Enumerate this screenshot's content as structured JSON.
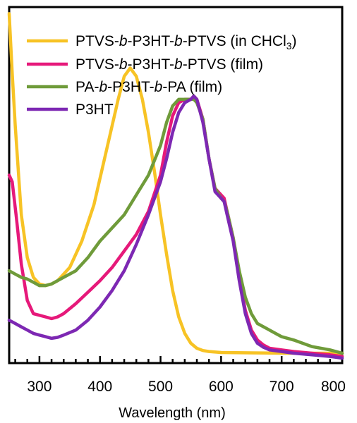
{
  "chart_data": {
    "type": "line",
    "title": "",
    "xlabel": "Wavelength (nm)",
    "ylabel": "",
    "xlim": [
      250,
      800
    ],
    "ylim": [
      0,
      1.08
    ],
    "x_ticks": [
      "300",
      "400",
      "500",
      "600",
      "700",
      "800"
    ],
    "y_ticks": [],
    "grid": false,
    "legend_position": "top-left",
    "series": [
      {
        "name": "PTVS-b-P3HT-b-PTVS (in CHCl3)",
        "color": "#f7c325",
        "points": [
          [
            250,
            1.06
          ],
          [
            255,
            0.88
          ],
          [
            260,
            0.72
          ],
          [
            270,
            0.45
          ],
          [
            280,
            0.32
          ],
          [
            290,
            0.26
          ],
          [
            300,
            0.24
          ],
          [
            310,
            0.235
          ],
          [
            320,
            0.24
          ],
          [
            330,
            0.25
          ],
          [
            350,
            0.29
          ],
          [
            370,
            0.37
          ],
          [
            390,
            0.48
          ],
          [
            410,
            0.64
          ],
          [
            430,
            0.8
          ],
          [
            440,
            0.87
          ],
          [
            450,
            0.895
          ],
          [
            460,
            0.87
          ],
          [
            470,
            0.8
          ],
          [
            480,
            0.7
          ],
          [
            490,
            0.58
          ],
          [
            500,
            0.45
          ],
          [
            510,
            0.33
          ],
          [
            520,
            0.22
          ],
          [
            530,
            0.14
          ],
          [
            540,
            0.09
          ],
          [
            550,
            0.06
          ],
          [
            560,
            0.045
          ],
          [
            570,
            0.038
          ],
          [
            580,
            0.035
          ],
          [
            600,
            0.032
          ],
          [
            650,
            0.031
          ],
          [
            700,
            0.03
          ],
          [
            750,
            0.03
          ],
          [
            800,
            0.03
          ]
        ]
      },
      {
        "name": "PTVS-b-P3HT-b-PTVS (film)",
        "color": "#e6197a",
        "points": [
          [
            250,
            0.57
          ],
          [
            255,
            0.55
          ],
          [
            262,
            0.44
          ],
          [
            270,
            0.3
          ],
          [
            280,
            0.19
          ],
          [
            290,
            0.15
          ],
          [
            300,
            0.145
          ],
          [
            310,
            0.14
          ],
          [
            320,
            0.135
          ],
          [
            330,
            0.14
          ],
          [
            340,
            0.15
          ],
          [
            360,
            0.18
          ],
          [
            380,
            0.215
          ],
          [
            400,
            0.25
          ],
          [
            420,
            0.29
          ],
          [
            440,
            0.34
          ],
          [
            460,
            0.39
          ],
          [
            480,
            0.46
          ],
          [
            500,
            0.57
          ],
          [
            510,
            0.67
          ],
          [
            520,
            0.75
          ],
          [
            530,
            0.79
          ],
          [
            540,
            0.8
          ],
          [
            550,
            0.8
          ],
          [
            555,
            0.81
          ],
          [
            560,
            0.8
          ],
          [
            570,
            0.74
          ],
          [
            580,
            0.62
          ],
          [
            590,
            0.53
          ],
          [
            600,
            0.51
          ],
          [
            605,
            0.5
          ],
          [
            610,
            0.46
          ],
          [
            620,
            0.38
          ],
          [
            630,
            0.26
          ],
          [
            640,
            0.16
          ],
          [
            650,
            0.1
          ],
          [
            660,
            0.07
          ],
          [
            670,
            0.055
          ],
          [
            680,
            0.045
          ],
          [
            700,
            0.04
          ],
          [
            720,
            0.035
          ],
          [
            750,
            0.03
          ],
          [
            780,
            0.025
          ],
          [
            800,
            0.02
          ]
        ]
      },
      {
        "name": "PA-b-P3HT-b-PA (film)",
        "color": "#6f9b3a",
        "points": [
          [
            250,
            0.28
          ],
          [
            260,
            0.27
          ],
          [
            270,
            0.26
          ],
          [
            280,
            0.255
          ],
          [
            290,
            0.245
          ],
          [
            300,
            0.235
          ],
          [
            310,
            0.235
          ],
          [
            320,
            0.24
          ],
          [
            340,
            0.26
          ],
          [
            360,
            0.28
          ],
          [
            380,
            0.32
          ],
          [
            400,
            0.37
          ],
          [
            420,
            0.41
          ],
          [
            440,
            0.45
          ],
          [
            460,
            0.51
          ],
          [
            480,
            0.57
          ],
          [
            500,
            0.66
          ],
          [
            510,
            0.73
          ],
          [
            520,
            0.78
          ],
          [
            530,
            0.8
          ],
          [
            540,
            0.8
          ],
          [
            550,
            0.8
          ],
          [
            555,
            0.8
          ],
          [
            560,
            0.79
          ],
          [
            570,
            0.74
          ],
          [
            580,
            0.62
          ],
          [
            590,
            0.53
          ],
          [
            600,
            0.5
          ],
          [
            605,
            0.49
          ],
          [
            610,
            0.46
          ],
          [
            620,
            0.38
          ],
          [
            630,
            0.28
          ],
          [
            640,
            0.2
          ],
          [
            650,
            0.15
          ],
          [
            660,
            0.12
          ],
          [
            680,
            0.1
          ],
          [
            700,
            0.08
          ],
          [
            720,
            0.07
          ],
          [
            750,
            0.05
          ],
          [
            780,
            0.04
          ],
          [
            800,
            0.03
          ]
        ]
      },
      {
        "name": "P3HT",
        "color": "#7d28b3",
        "points": [
          [
            250,
            0.13
          ],
          [
            260,
            0.12
          ],
          [
            270,
            0.11
          ],
          [
            280,
            0.1
          ],
          [
            290,
            0.09
          ],
          [
            300,
            0.085
          ],
          [
            310,
            0.08
          ],
          [
            320,
            0.075
          ],
          [
            330,
            0.078
          ],
          [
            340,
            0.085
          ],
          [
            360,
            0.1
          ],
          [
            380,
            0.13
          ],
          [
            400,
            0.17
          ],
          [
            420,
            0.22
          ],
          [
            440,
            0.28
          ],
          [
            460,
            0.36
          ],
          [
            480,
            0.45
          ],
          [
            500,
            0.55
          ],
          [
            510,
            0.62
          ],
          [
            520,
            0.7
          ],
          [
            530,
            0.76
          ],
          [
            540,
            0.79
          ],
          [
            550,
            0.8
          ],
          [
            555,
            0.81
          ],
          [
            560,
            0.8
          ],
          [
            570,
            0.73
          ],
          [
            580,
            0.62
          ],
          [
            590,
            0.52
          ],
          [
            600,
            0.5
          ],
          [
            605,
            0.49
          ],
          [
            610,
            0.45
          ],
          [
            620,
            0.37
          ],
          [
            630,
            0.25
          ],
          [
            640,
            0.15
          ],
          [
            650,
            0.09
          ],
          [
            660,
            0.06
          ],
          [
            670,
            0.048
          ],
          [
            680,
            0.04
          ],
          [
            700,
            0.035
          ],
          [
            720,
            0.03
          ],
          [
            750,
            0.025
          ],
          [
            780,
            0.02
          ],
          [
            800,
            0.015
          ]
        ]
      }
    ],
    "legend": [
      {
        "parts": [
          [
            "PTVS-",
            false
          ],
          [
            "b",
            true
          ],
          [
            "-P3HT-",
            false
          ],
          [
            "b",
            true
          ],
          [
            "-PTVS (in CHCl",
            false
          ]
        ],
        "sub": "3",
        "tail": ")"
      },
      {
        "parts": [
          [
            "PTVS-",
            false
          ],
          [
            "b",
            true
          ],
          [
            "-P3HT-",
            false
          ],
          [
            "b",
            true
          ],
          [
            "-PTVS (film)",
            false
          ]
        ],
        "sub": "",
        "tail": ""
      },
      {
        "parts": [
          [
            "PA-",
            false
          ],
          [
            "b",
            true
          ],
          [
            "-P3HT-",
            false
          ],
          [
            "b",
            true
          ],
          [
            "-PA (film)",
            false
          ]
        ],
        "sub": "",
        "tail": ""
      },
      {
        "parts": [
          [
            "P3HT",
            false
          ]
        ],
        "sub": "",
        "tail": ""
      }
    ]
  }
}
